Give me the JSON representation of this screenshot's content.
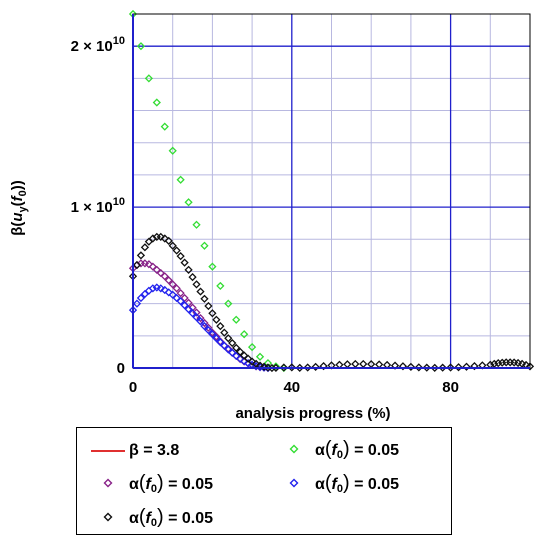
{
  "chart_data": {
    "type": "scatter",
    "xlabel": "analysis progress (%)",
    "ylabel": "β(u_y(f_0))",
    "xlim": [
      0,
      100
    ],
    "ylim": [
      0,
      22000000000.0
    ],
    "x_ticks": [
      0,
      40,
      80
    ],
    "y_ticks": [
      {
        "value": 0,
        "label": "0"
      },
      {
        "value": 10000000000.0,
        "label": "1 × 10",
        "exp": "10"
      },
      {
        "value": 20000000000.0,
        "label": "2 × 10",
        "exp": "10"
      }
    ],
    "grid": true,
    "colors": {
      "beta_line": "#e03030",
      "green": "#33dd33",
      "purple": "#882288",
      "blue": "#2222ee",
      "black": "#111111",
      "major_grid": "#2020cc",
      "minor_grid": "#b8b8e0"
    },
    "series": [
      {
        "key": "beta",
        "kind": "line",
        "color": "#e03030",
        "x": [
          0,
          100
        ],
        "y": [
          3.8,
          3.8
        ]
      },
      {
        "key": "green",
        "kind": "diamond",
        "color": "#33dd33",
        "x": [
          0,
          2,
          4,
          6,
          8,
          10,
          12,
          14,
          16,
          18,
          20,
          22,
          24,
          26,
          28,
          30,
          32,
          34,
          36,
          38
        ],
        "y": [
          22000000000.0,
          20000000000.0,
          18000000000.0,
          16500000000.0,
          15000000000.0,
          13500000000.0,
          11700000000.0,
          10300000000.0,
          8900000000.0,
          7600000000.0,
          6300000000.0,
          5100000000.0,
          4000000000.0,
          3000000000.0,
          2100000000.0,
          1300000000.0,
          700000000.0,
          300000000.0,
          100000000.0,
          0
        ]
      },
      {
        "key": "purple",
        "kind": "diamond",
        "color": "#882288",
        "x": [
          0,
          1,
          2,
          3,
          4,
          5,
          6,
          7,
          8,
          9,
          10,
          11,
          12,
          13,
          14,
          15,
          16,
          17,
          18,
          19,
          20,
          21,
          22,
          23,
          24,
          25,
          26,
          27,
          28,
          29,
          30,
          31,
          32,
          33,
          34
        ],
        "y": [
          6200000000.0,
          6400000000.0,
          6500000000.0,
          6500000000.0,
          6450000000.0,
          6300000000.0,
          6100000000.0,
          5900000000.0,
          5700000000.0,
          5450000000.0,
          5200000000.0,
          4950000000.0,
          4650000000.0,
          4350000000.0,
          4050000000.0,
          3750000000.0,
          3450000000.0,
          3100000000.0,
          2800000000.0,
          2500000000.0,
          2200000000.0,
          1950000000.0,
          1650000000.0,
          1400000000.0,
          1200000000.0,
          950000000.0,
          750000000.0,
          550000000.0,
          400000000.0,
          280000000.0,
          180000000.0,
          100000000.0,
          50000000.0,
          20000000.0,
          0
        ]
      },
      {
        "key": "blue",
        "kind": "diamond",
        "color": "#2222ee",
        "x": [
          0,
          1,
          2,
          3,
          4,
          5,
          6,
          7,
          8,
          9,
          10,
          11,
          12,
          13,
          14,
          15,
          16,
          17,
          18,
          19,
          20,
          21,
          22,
          23,
          24,
          25,
          26,
          27,
          28,
          29,
          30,
          31,
          32,
          33,
          34
        ],
        "y": [
          3600000000.0,
          4000000000.0,
          4350000000.0,
          4600000000.0,
          4800000000.0,
          4950000000.0,
          5000000000.0,
          4950000000.0,
          4850000000.0,
          4700000000.0,
          4550000000.0,
          4350000000.0,
          4150000000.0,
          3900000000.0,
          3650000000.0,
          3400000000.0,
          3150000000.0,
          2900000000.0,
          2600000000.0,
          2350000000.0,
          2100000000.0,
          1850000000.0,
          1600000000.0,
          1380000000.0,
          1150000000.0,
          950000000.0,
          750000000.0,
          580000000.0,
          430000000.0,
          300000000.0,
          200000000.0,
          120000000.0,
          60000000.0,
          20000000.0,
          0
        ]
      },
      {
        "key": "black",
        "kind": "diamond",
        "color": "#111111",
        "x": [
          0,
          1,
          2,
          3,
          4,
          5,
          6,
          7,
          8,
          9,
          10,
          11,
          12,
          13,
          14,
          15,
          16,
          17,
          18,
          19,
          20,
          21,
          22,
          23,
          24,
          25,
          26,
          27,
          28,
          29,
          30,
          31,
          32,
          33,
          34,
          35,
          36,
          38,
          40,
          42,
          44,
          46,
          48,
          50,
          52,
          54,
          56,
          58,
          60,
          62,
          64,
          66,
          68,
          70,
          72,
          74,
          76,
          78,
          80,
          82,
          84,
          86,
          88,
          90,
          91,
          92,
          93,
          94,
          95,
          96,
          97,
          98,
          99,
          100
        ],
        "y": [
          5700000000.0,
          6400000000.0,
          7000000000.0,
          7500000000.0,
          7850000000.0,
          8050000000.0,
          8150000000.0,
          8150000000.0,
          8050000000.0,
          7900000000.0,
          7600000000.0,
          7300000000.0,
          6950000000.0,
          6550000000.0,
          6100000000.0,
          5650000000.0,
          5200000000.0,
          4750000000.0,
          4300000000.0,
          3850000000.0,
          3400000000.0,
          3000000000.0,
          2600000000.0,
          2200000000.0,
          1850000000.0,
          1550000000.0,
          1250000000.0,
          1000000000.0,
          780000000.0,
          580000000.0,
          400000000.0,
          260000000.0,
          150000000.0,
          80000000.0,
          30000000.0,
          0,
          10000000.0,
          30000000.0,
          40000000.0,
          10000000.0,
          30000000.0,
          70000000.0,
          120000000.0,
          160000000.0,
          200000000.0,
          230000000.0,
          250000000.0,
          250000000.0,
          240000000.0,
          220000000.0,
          190000000.0,
          150000000.0,
          110000000.0,
          70000000.0,
          40000000.0,
          20000000.0,
          10000000.0,
          20000000.0,
          30000000.0,
          50000000.0,
          80000000.0,
          120000000.0,
          160000000.0,
          200000000.0,
          260000000.0,
          300000000.0,
          330000000.0,
          350000000.0,
          350000000.0,
          340000000.0,
          310000000.0,
          260000000.0,
          190000000.0,
          100000000.0
        ]
      }
    ],
    "legend": {
      "placement": "bottom",
      "entries": [
        {
          "key": "beta",
          "symbol": "line",
          "color": "#e03030",
          "label_pre": "β = 3.8"
        },
        {
          "key": "green",
          "symbol": "diamond",
          "color": "#33dd33",
          "label_pre": "α",
          "sub": "0",
          "label_post": " = 0.05"
        },
        {
          "key": "purple",
          "symbol": "diamond",
          "color": "#882288",
          "label_pre": "α",
          "sub": "0",
          "label_post": " = 0.05"
        },
        {
          "key": "blue",
          "symbol": "diamond",
          "color": "#2222ee",
          "label_pre": "α",
          "sub": "0",
          "label_post": " = 0.05"
        },
        {
          "key": "black",
          "symbol": "diamond",
          "color": "#111111",
          "label_pre": "α",
          "sub": "0",
          "label_post": " = 0.05"
        }
      ]
    }
  }
}
